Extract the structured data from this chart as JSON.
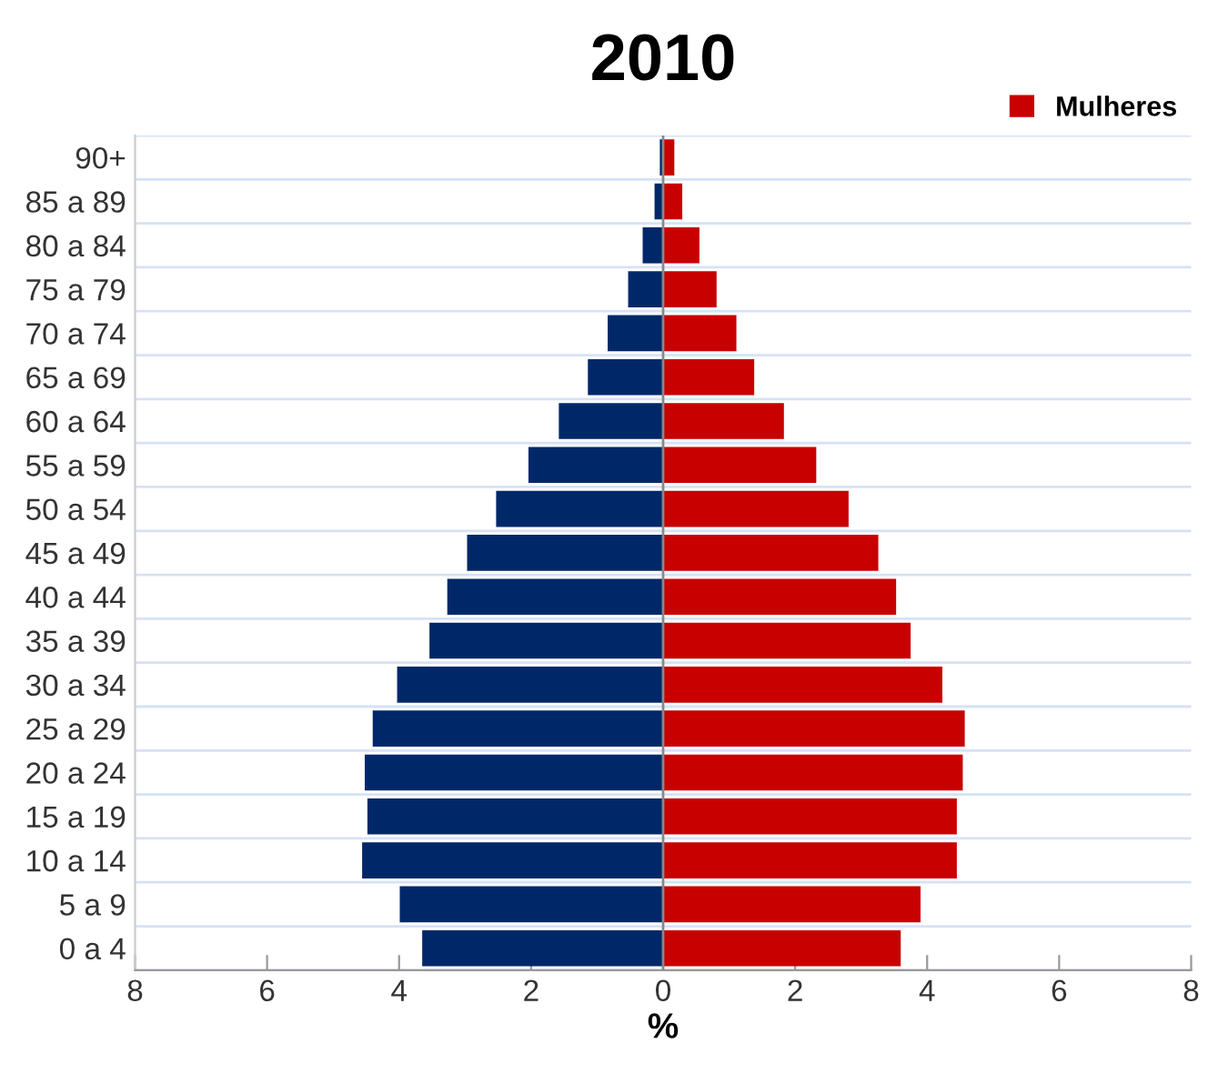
{
  "chart_data": {
    "type": "bar",
    "orientation": "horizontal",
    "stacked": true,
    "title": "2010",
    "xlabel": "%",
    "categories": [
      "90+",
      "85 a 89",
      "80 a 84",
      "75 a 79",
      "70 a 74",
      "65 a 69",
      "60 a 64",
      "55 a 59",
      "50 a 54",
      "45 a 49",
      "40 a 44",
      "35 a 39",
      "30 a 34",
      "25 a 29",
      "20 a 24",
      "15 a 19",
      "10 a 14",
      "5 a 9",
      "0 a 4"
    ],
    "series": [
      {
        "color": "#002868",
        "values": [
          -0.05,
          -0.13,
          -0.31,
          -0.53,
          -0.84,
          -1.14,
          -1.58,
          -2.04,
          -2.53,
          -2.97,
          -3.27,
          -3.54,
          -4.03,
          -4.4,
          -4.52,
          -4.48,
          -4.56,
          -3.99,
          -3.65
        ]
      },
      {
        "name": "Mulheres",
        "color": "#c80000",
        "values": [
          0.17,
          0.29,
          0.55,
          0.81,
          1.11,
          1.38,
          1.83,
          2.32,
          2.81,
          3.26,
          3.53,
          3.75,
          4.23,
          4.57,
          4.54,
          4.45,
          4.45,
          3.9,
          3.6
        ]
      }
    ],
    "xlim": [
      -8,
      8
    ],
    "xticks": [
      {
        "value": -8,
        "label": "8"
      },
      {
        "value": -6,
        "label": "6"
      },
      {
        "value": -4,
        "label": "4"
      },
      {
        "value": -2,
        "label": "2"
      },
      0,
      2,
      4,
      6,
      8
    ],
    "grid": "y",
    "legend": "top right"
  }
}
